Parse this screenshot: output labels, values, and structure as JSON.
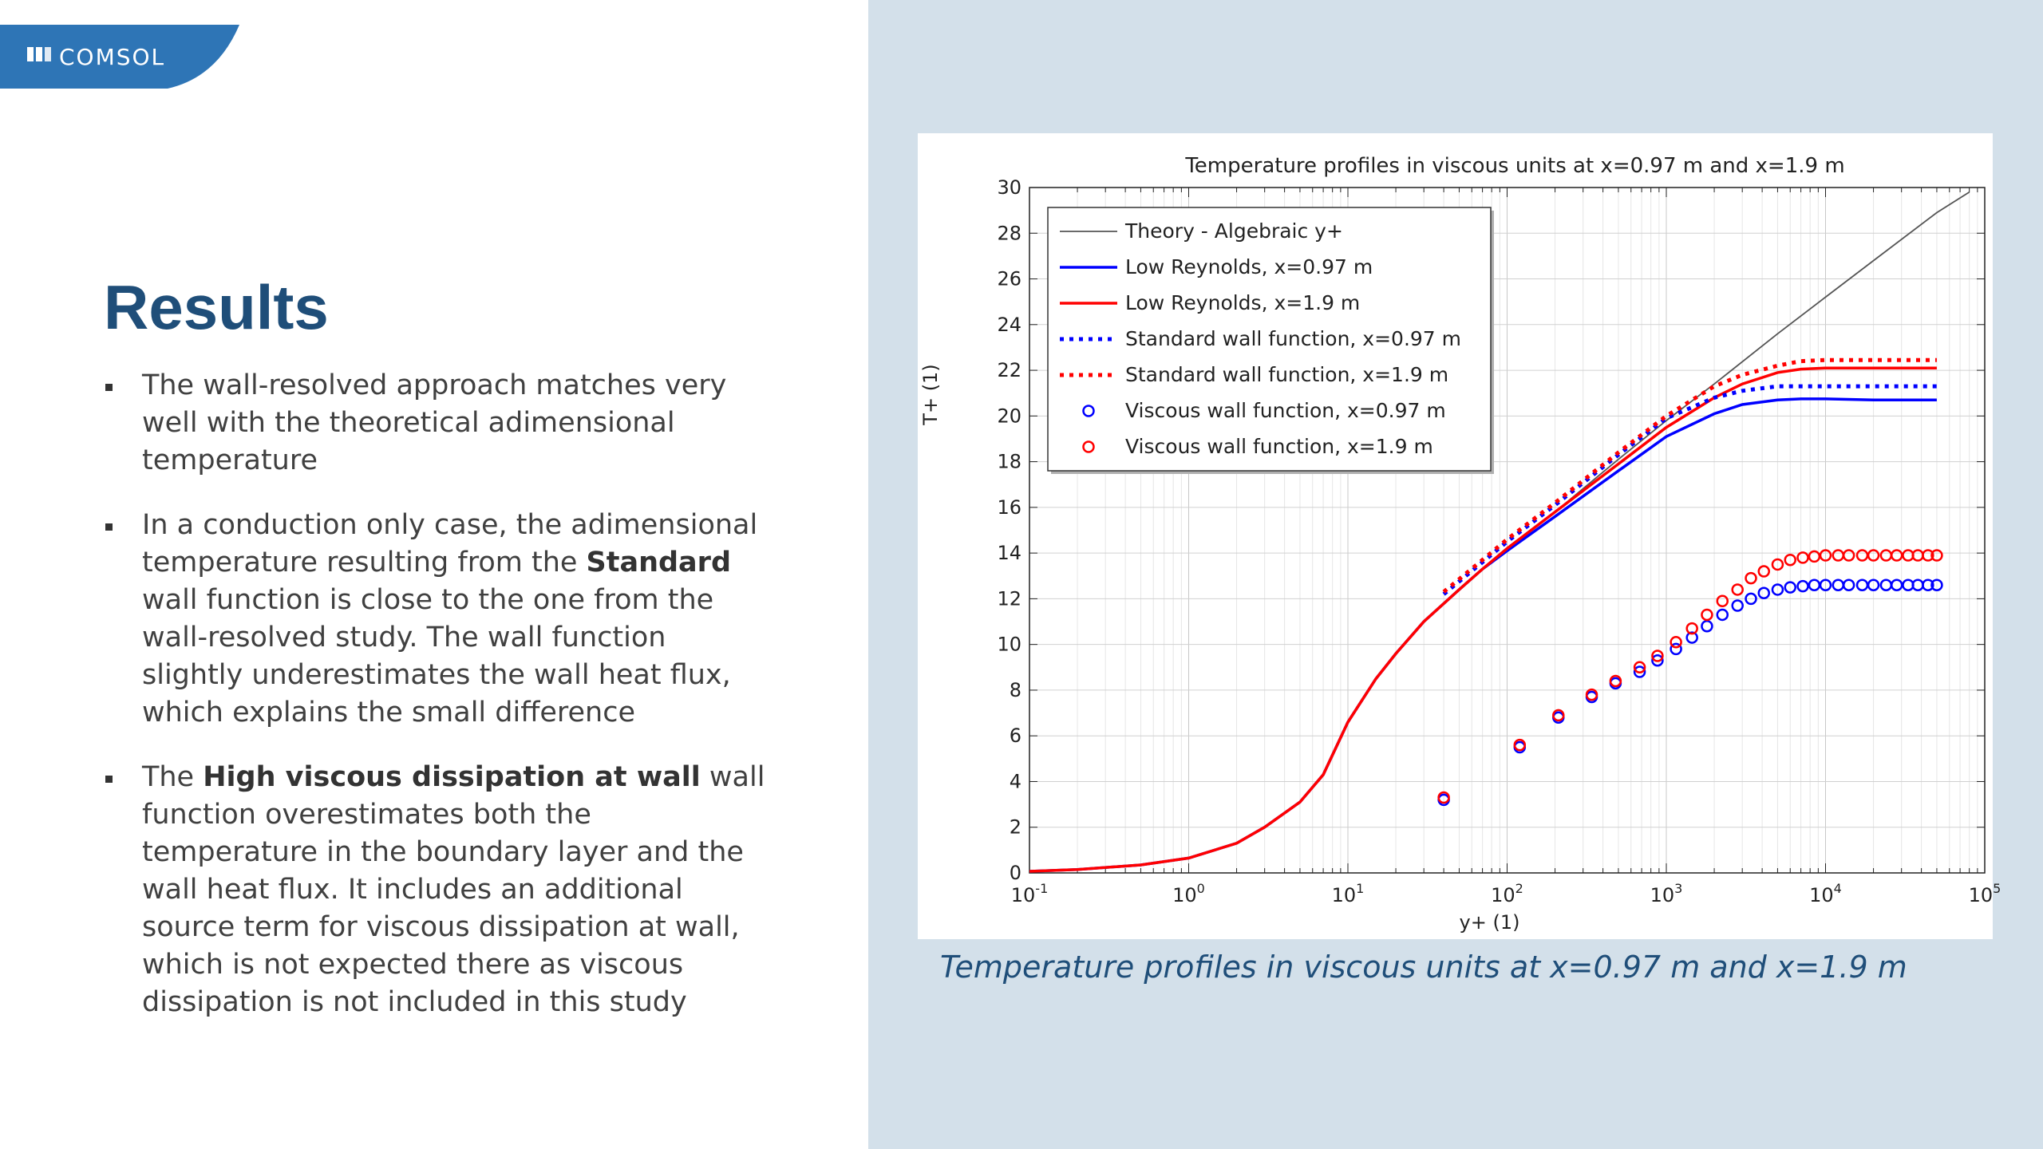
{
  "brand": {
    "name": "COMSOL",
    "tab_color": "#2e75b6"
  },
  "slide": {
    "title": "Results",
    "bullets": [
      [
        "The wall-resolved approach matches very well with the theoretical adimensional temperature"
      ],
      [
        "In a conduction only case, the adimensional temperature resulting from the ",
        {
          "bold": "Standard"
        },
        " wall function is close to the one from the wall-resolved study. The wall function slightly underestimates the wall heat flux, which explains the small difference"
      ],
      [
        "The ",
        {
          "bold": "High viscous dissipation at wall"
        },
        " wall function overestimates both the temperature in the boundary layer and the wall heat flux. It includes an additional source term for viscous dissipation at wall, which is not expected there as viscous dissipation is not included in this study"
      ]
    ],
    "caption": "Temperature profiles in viscous units at x=0.97 m and x=1.9 m"
  },
  "colors": {
    "title": "#1f4e79",
    "right_panel": "#d3e0ea",
    "series_blue": "#0000ff",
    "series_red": "#ff0000",
    "theory": "#555555"
  },
  "chart_data": {
    "type": "line",
    "title": "Temperature profiles in viscous units at x=0.97 m and x=1.9 m",
    "xlabel": "y+ (1)",
    "ylabel": "T+ (1)",
    "xscale": "log",
    "xlim": [
      0.1,
      100000
    ],
    "ylim": [
      0,
      30
    ],
    "y_ticks": [
      0,
      2,
      4,
      6,
      8,
      10,
      12,
      14,
      16,
      18,
      20,
      22,
      24,
      26,
      28,
      30
    ],
    "x_ticks": [
      {
        "value": 0.1,
        "base": "10",
        "exp": "-1"
      },
      {
        "value": 1,
        "base": "10",
        "exp": "0"
      },
      {
        "value": 10,
        "base": "10",
        "exp": "1"
      },
      {
        "value": 100,
        "base": "10",
        "exp": "2"
      },
      {
        "value": 1000,
        "base": "10",
        "exp": "3"
      },
      {
        "value": 10000,
        "base": "10",
        "exp": "4"
      },
      {
        "value": 100000,
        "base": "10",
        "exp": "5"
      }
    ],
    "grid": true,
    "legend_position": "top-left",
    "series": [
      {
        "name": "Theory - Algebraic y+",
        "style": "solid",
        "color": "#555555",
        "x": [
          0.1,
          0.2,
          0.5,
          1,
          2,
          3,
          5,
          7,
          10,
          15,
          20,
          30,
          50,
          70,
          100,
          200,
          500,
          1000,
          2000,
          5000,
          10000,
          20000,
          50000,
          80000
        ],
        "y": [
          0.07,
          0.15,
          0.35,
          0.65,
          1.3,
          2.0,
          3.1,
          4.3,
          6.6,
          8.5,
          9.6,
          11.0,
          12.4,
          13.3,
          14.2,
          15.8,
          18.1,
          19.8,
          21.4,
          23.6,
          25.2,
          26.8,
          28.9,
          29.8
        ]
      },
      {
        "name": "Low Reynolds, x=0.97 m",
        "style": "solid",
        "color": "#0000ff",
        "x": [
          0.1,
          0.2,
          0.5,
          1,
          2,
          3,
          5,
          7,
          10,
          15,
          20,
          30,
          50,
          70,
          100,
          200,
          500,
          1000,
          2000,
          3000,
          5000,
          7000,
          10000,
          20000,
          50000
        ],
        "y": [
          0.07,
          0.15,
          0.35,
          0.65,
          1.3,
          2.0,
          3.1,
          4.3,
          6.6,
          8.5,
          9.6,
          11.0,
          12.4,
          13.3,
          14.1,
          15.6,
          17.6,
          19.1,
          20.1,
          20.5,
          20.7,
          20.75,
          20.75,
          20.7,
          20.7
        ]
      },
      {
        "name": "Low Reynolds, x=1.9 m",
        "style": "solid",
        "color": "#ff0000",
        "x": [
          0.1,
          0.2,
          0.5,
          1,
          2,
          3,
          5,
          7,
          10,
          15,
          20,
          30,
          50,
          70,
          100,
          200,
          500,
          1000,
          2000,
          3000,
          5000,
          7000,
          10000,
          20000,
          50000
        ],
        "y": [
          0.07,
          0.15,
          0.35,
          0.65,
          1.3,
          2.0,
          3.1,
          4.3,
          6.6,
          8.5,
          9.6,
          11.0,
          12.4,
          13.3,
          14.2,
          15.8,
          17.9,
          19.5,
          20.8,
          21.4,
          21.9,
          22.05,
          22.1,
          22.1,
          22.1
        ]
      },
      {
        "name": "Standard wall function, x=0.97 m",
        "style": "dotted",
        "color": "#0000ff",
        "x": [
          40,
          70,
          100,
          200,
          500,
          1000,
          2000,
          3000,
          5000,
          7000,
          10000,
          20000,
          50000
        ],
        "y": [
          12.2,
          13.6,
          14.5,
          16.1,
          18.3,
          19.9,
          20.8,
          21.1,
          21.3,
          21.3,
          21.3,
          21.3,
          21.3
        ]
      },
      {
        "name": "Standard wall function, x=1.9 m",
        "style": "dotted",
        "color": "#ff0000",
        "x": [
          40,
          70,
          100,
          200,
          500,
          1000,
          2000,
          3000,
          5000,
          7000,
          10000,
          20000,
          50000
        ],
        "y": [
          12.3,
          13.7,
          14.6,
          16.2,
          18.4,
          20.0,
          21.3,
          21.8,
          22.2,
          22.4,
          22.45,
          22.45,
          22.45
        ]
      },
      {
        "name": "Viscous wall function, x=0.97 m",
        "style": "marker",
        "color": "#0000ff",
        "x": [
          40,
          120,
          210,
          340,
          480,
          680,
          880,
          1150,
          1450,
          1800,
          2250,
          2800,
          3400,
          4100,
          5000,
          6000,
          7200,
          8500,
          10000,
          12000,
          14000,
          17000,
          20000,
          24000,
          28000,
          33000,
          38000,
          44000,
          50000
        ],
        "y": [
          3.2,
          5.5,
          6.8,
          7.7,
          8.3,
          8.8,
          9.3,
          9.8,
          10.3,
          10.8,
          11.3,
          11.7,
          12.0,
          12.25,
          12.4,
          12.5,
          12.55,
          12.6,
          12.6,
          12.6,
          12.6,
          12.6,
          12.6,
          12.6,
          12.6,
          12.6,
          12.6,
          12.6,
          12.6
        ]
      },
      {
        "name": "Viscous wall function, x=1.9 m",
        "style": "marker",
        "color": "#ff0000",
        "x": [
          40,
          120,
          210,
          340,
          480,
          680,
          880,
          1150,
          1450,
          1800,
          2250,
          2800,
          3400,
          4100,
          5000,
          6000,
          7200,
          8500,
          10000,
          12000,
          14000,
          17000,
          20000,
          24000,
          28000,
          33000,
          38000,
          44000,
          50000
        ],
        "y": [
          3.3,
          5.6,
          6.9,
          7.8,
          8.4,
          9.0,
          9.5,
          10.1,
          10.7,
          11.3,
          11.9,
          12.4,
          12.9,
          13.2,
          13.5,
          13.7,
          13.8,
          13.85,
          13.9,
          13.9,
          13.9,
          13.9,
          13.9,
          13.9,
          13.9,
          13.9,
          13.9,
          13.9,
          13.9
        ]
      }
    ]
  }
}
